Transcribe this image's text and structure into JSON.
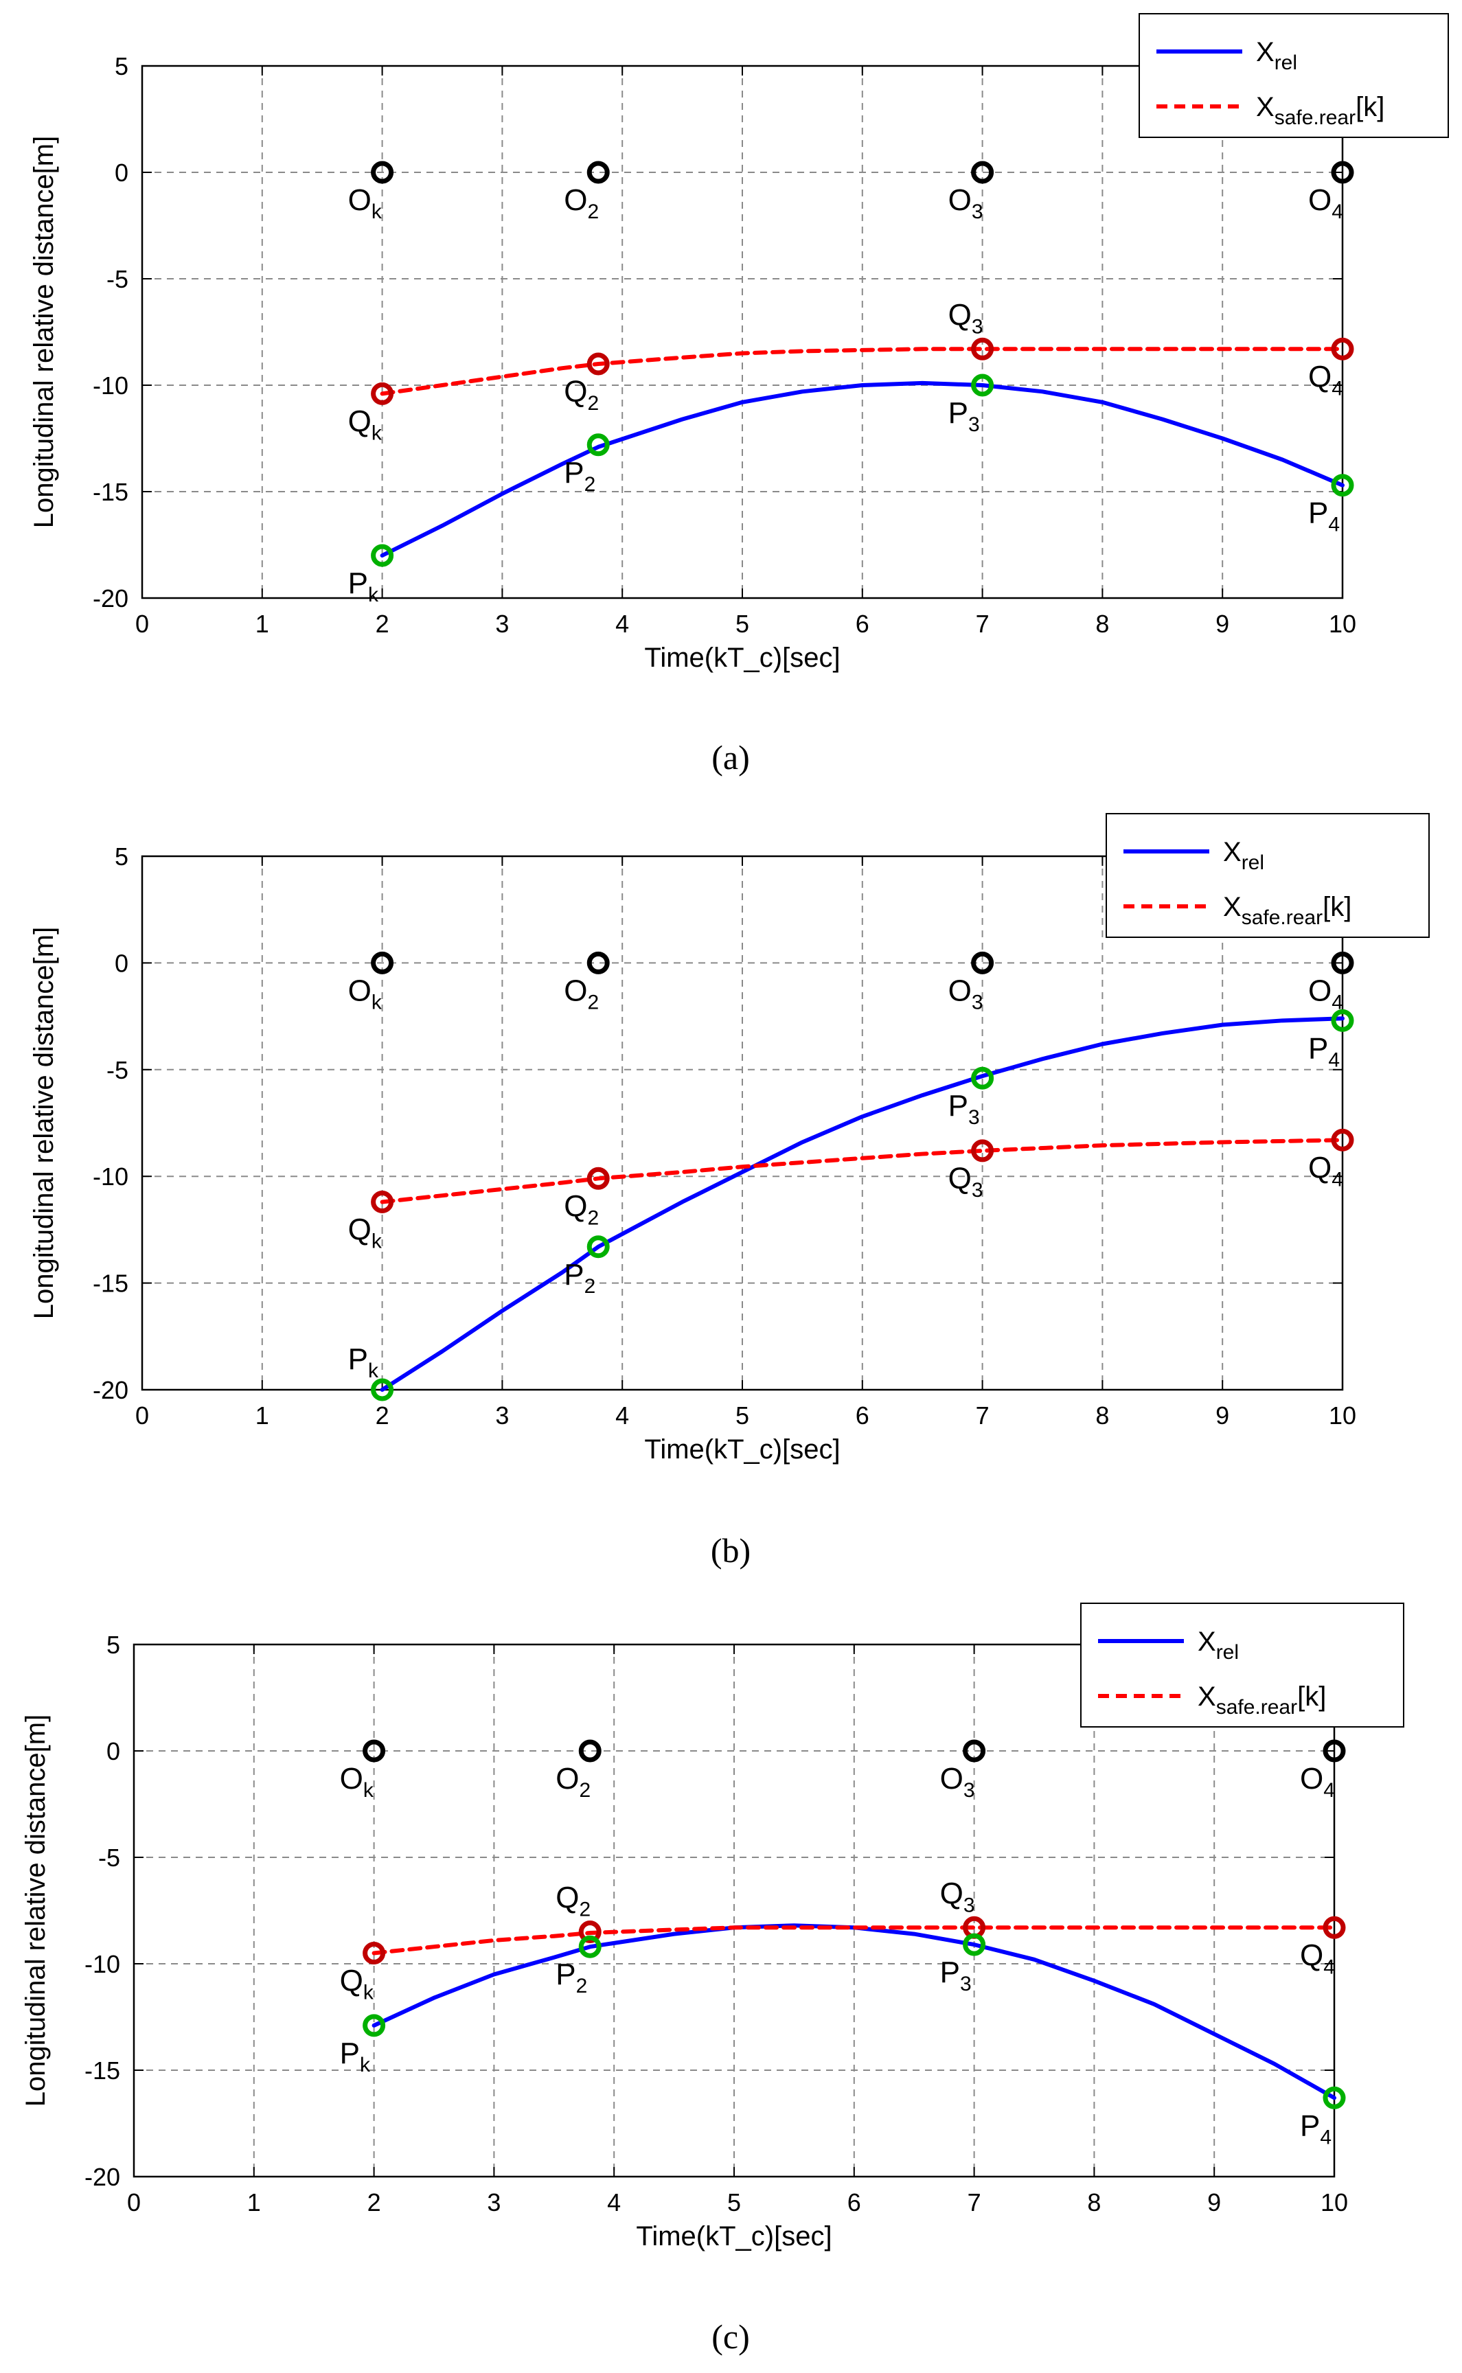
{
  "chart_data": [
    {
      "type": "line",
      "panel": "(a)",
      "xlabel": "Time(kT_c)[sec]",
      "ylabel": "Longitudinal relative distance[m]",
      "xlim": [
        0,
        10
      ],
      "ylim": [
        -20,
        5
      ],
      "xticks": [
        0,
        1,
        2,
        3,
        4,
        5,
        6,
        7,
        8,
        9,
        10
      ],
      "yticks": [
        5,
        0,
        -5,
        -10,
        -15,
        -20
      ],
      "grid": true,
      "legend_placement": "top-right",
      "series": [
        {
          "name": "X_rel",
          "color": "#0000ff",
          "style": "solid",
          "x": [
            2,
            2.5,
            3,
            3.5,
            3.8,
            4.5,
            5,
            5.5,
            6,
            6.5,
            7,
            7.5,
            8,
            8.5,
            9,
            9.5,
            10
          ],
          "y": [
            -18,
            -16.6,
            -15.1,
            -13.7,
            -12.9,
            -11.6,
            -10.8,
            -10.3,
            -10.0,
            -9.9,
            -10.0,
            -10.3,
            -10.8,
            -11.6,
            -12.5,
            -13.5,
            -14.7
          ]
        },
        {
          "name": "X_safe.rear[k]",
          "color": "#ff0000",
          "style": "dashed",
          "x": [
            2,
            2.5,
            3,
            3.5,
            3.8,
            4.5,
            5,
            5.5,
            6,
            6.5,
            7,
            8,
            9,
            10
          ],
          "y": [
            -10.4,
            -10.0,
            -9.6,
            -9.2,
            -9.0,
            -8.7,
            -8.5,
            -8.4,
            -8.35,
            -8.3,
            -8.3,
            -8.3,
            -8.3,
            -8.3
          ]
        }
      ],
      "markers": [
        {
          "label": "O",
          "sub": "k",
          "x": 2,
          "y": 0,
          "color": "#000000"
        },
        {
          "label": "O",
          "sub": "2",
          "x": 3.8,
          "y": 0,
          "color": "#000000"
        },
        {
          "label": "O",
          "sub": "3",
          "x": 7,
          "y": 0,
          "color": "#000000"
        },
        {
          "label": "O",
          "sub": "4",
          "x": 10,
          "y": 0,
          "color": "#000000"
        },
        {
          "label": "Q",
          "sub": "k",
          "x": 2,
          "y": -10.4,
          "color": "#c00000"
        },
        {
          "label": "Q",
          "sub": "2",
          "x": 3.8,
          "y": -9.0,
          "color": "#c00000"
        },
        {
          "label": "Q",
          "sub": "3",
          "x": 7,
          "y": -8.3,
          "color": "#c00000"
        },
        {
          "label": "Q",
          "sub": "4",
          "x": 10,
          "y": -8.3,
          "color": "#c00000"
        },
        {
          "label": "P",
          "sub": "k",
          "x": 2,
          "y": -18,
          "color": "#00b000"
        },
        {
          "label": "P",
          "sub": "2",
          "x": 3.8,
          "y": -12.8,
          "color": "#00b000"
        },
        {
          "label": "P",
          "sub": "3",
          "x": 7,
          "y": -10.0,
          "color": "#00b000"
        },
        {
          "label": "P",
          "sub": "4",
          "x": 10,
          "y": -14.7,
          "color": "#00b000"
        }
      ]
    },
    {
      "type": "line",
      "panel": "(b)",
      "xlabel": "Time(kT_c)[sec]",
      "ylabel": "Longitudinal relative distance[m]",
      "xlim": [
        0,
        10
      ],
      "ylim": [
        -20,
        5
      ],
      "xticks": [
        0,
        1,
        2,
        3,
        4,
        5,
        6,
        7,
        8,
        9,
        10
      ],
      "yticks": [
        5,
        0,
        -5,
        -10,
        -15,
        -20
      ],
      "grid": true,
      "legend_placement": "top-right",
      "series": [
        {
          "name": "X_rel",
          "color": "#0000ff",
          "style": "solid",
          "x": [
            2,
            2.5,
            3,
            3.5,
            3.8,
            4.5,
            5,
            5.5,
            6,
            6.5,
            7,
            7.5,
            8,
            8.5,
            9,
            9.5,
            10
          ],
          "y": [
            -20,
            -18.2,
            -16.3,
            -14.5,
            -13.3,
            -11.2,
            -9.8,
            -8.4,
            -7.2,
            -6.2,
            -5.3,
            -4.5,
            -3.8,
            -3.3,
            -2.9,
            -2.7,
            -2.6
          ]
        },
        {
          "name": "X_safe.rear[k]",
          "color": "#ff0000",
          "style": "dashed",
          "x": [
            2,
            2.5,
            3,
            3.5,
            3.8,
            4.5,
            5,
            5.5,
            6,
            6.5,
            7,
            8,
            9,
            10
          ],
          "y": [
            -11.2,
            -10.9,
            -10.6,
            -10.3,
            -10.1,
            -9.8,
            -9.55,
            -9.35,
            -9.15,
            -8.95,
            -8.8,
            -8.55,
            -8.4,
            -8.3
          ]
        }
      ],
      "markers": [
        {
          "label": "O",
          "sub": "k",
          "x": 2,
          "y": 0,
          "color": "#000000"
        },
        {
          "label": "O",
          "sub": "2",
          "x": 3.8,
          "y": 0,
          "color": "#000000"
        },
        {
          "label": "O",
          "sub": "3",
          "x": 7,
          "y": 0,
          "color": "#000000"
        },
        {
          "label": "O",
          "sub": "4",
          "x": 10,
          "y": 0,
          "color": "#000000"
        },
        {
          "label": "Q",
          "sub": "k",
          "x": 2,
          "y": -11.2,
          "color": "#c00000"
        },
        {
          "label": "Q",
          "sub": "2",
          "x": 3.8,
          "y": -10.1,
          "color": "#c00000"
        },
        {
          "label": "Q",
          "sub": "3",
          "x": 7,
          "y": -8.8,
          "color": "#c00000"
        },
        {
          "label": "Q",
          "sub": "4",
          "x": 10,
          "y": -8.3,
          "color": "#c00000"
        },
        {
          "label": "P",
          "sub": "k",
          "x": 2,
          "y": -20,
          "color": "#00b000"
        },
        {
          "label": "P",
          "sub": "2",
          "x": 3.8,
          "y": -13.3,
          "color": "#00b000"
        },
        {
          "label": "P",
          "sub": "3",
          "x": 7,
          "y": -5.4,
          "color": "#00b000"
        },
        {
          "label": "P",
          "sub": "4",
          "x": 10,
          "y": -2.7,
          "color": "#00b000"
        }
      ]
    },
    {
      "type": "line",
      "panel": "(c)",
      "xlabel": "Time(kT_c)[sec]",
      "ylabel": "Longitudinal relative distance[m]",
      "xlim": [
        0,
        10
      ],
      "ylim": [
        -20,
        5
      ],
      "xticks": [
        0,
        1,
        2,
        3,
        4,
        5,
        6,
        7,
        8,
        9,
        10
      ],
      "yticks": [
        5,
        0,
        -5,
        -10,
        -15,
        -20
      ],
      "grid": true,
      "legend_placement": "top-right",
      "series": [
        {
          "name": "X_rel",
          "color": "#0000ff",
          "style": "solid",
          "x": [
            2,
            2.5,
            3,
            3.5,
            3.8,
            4.5,
            5,
            5.5,
            6,
            6.5,
            7,
            7.5,
            8,
            8.5,
            9,
            9.5,
            10
          ],
          "y": [
            -12.9,
            -11.6,
            -10.5,
            -9.7,
            -9.2,
            -8.6,
            -8.3,
            -8.2,
            -8.3,
            -8.6,
            -9.1,
            -9.8,
            -10.8,
            -11.9,
            -13.3,
            -14.7,
            -16.3
          ]
        },
        {
          "name": "X_safe.rear[k]",
          "color": "#ff0000",
          "style": "dashed",
          "x": [
            2,
            2.5,
            3,
            3.5,
            3.8,
            4.5,
            5,
            5.5,
            6,
            7,
            8,
            9,
            10
          ],
          "y": [
            -9.5,
            -9.2,
            -8.9,
            -8.7,
            -8.55,
            -8.4,
            -8.3,
            -8.3,
            -8.3,
            -8.3,
            -8.3,
            -8.3,
            -8.3
          ]
        }
      ],
      "markers": [
        {
          "label": "O",
          "sub": "k",
          "x": 2,
          "y": 0,
          "color": "#000000"
        },
        {
          "label": "O",
          "sub": "2",
          "x": 3.8,
          "y": 0,
          "color": "#000000"
        },
        {
          "label": "O",
          "sub": "3",
          "x": 7,
          "y": 0,
          "color": "#000000"
        },
        {
          "label": "O",
          "sub": "4",
          "x": 10,
          "y": 0,
          "color": "#000000"
        },
        {
          "label": "Q",
          "sub": "k",
          "x": 2,
          "y": -9.5,
          "color": "#c00000"
        },
        {
          "label": "Q",
          "sub": "2",
          "x": 3.8,
          "y": -8.5,
          "color": "#c00000"
        },
        {
          "label": "Q",
          "sub": "3",
          "x": 7,
          "y": -8.3,
          "color": "#c00000"
        },
        {
          "label": "Q",
          "sub": "4",
          "x": 10,
          "y": -8.3,
          "color": "#c00000"
        },
        {
          "label": "P",
          "sub": "k",
          "x": 2,
          "y": -12.9,
          "color": "#00b000"
        },
        {
          "label": "P",
          "sub": "2",
          "x": 3.8,
          "y": -9.2,
          "color": "#00b000"
        },
        {
          "label": "P",
          "sub": "3",
          "x": 7,
          "y": -9.1,
          "color": "#00b000"
        },
        {
          "label": "P",
          "sub": "4",
          "x": 10,
          "y": -16.3,
          "color": "#00b000"
        }
      ]
    }
  ]
}
